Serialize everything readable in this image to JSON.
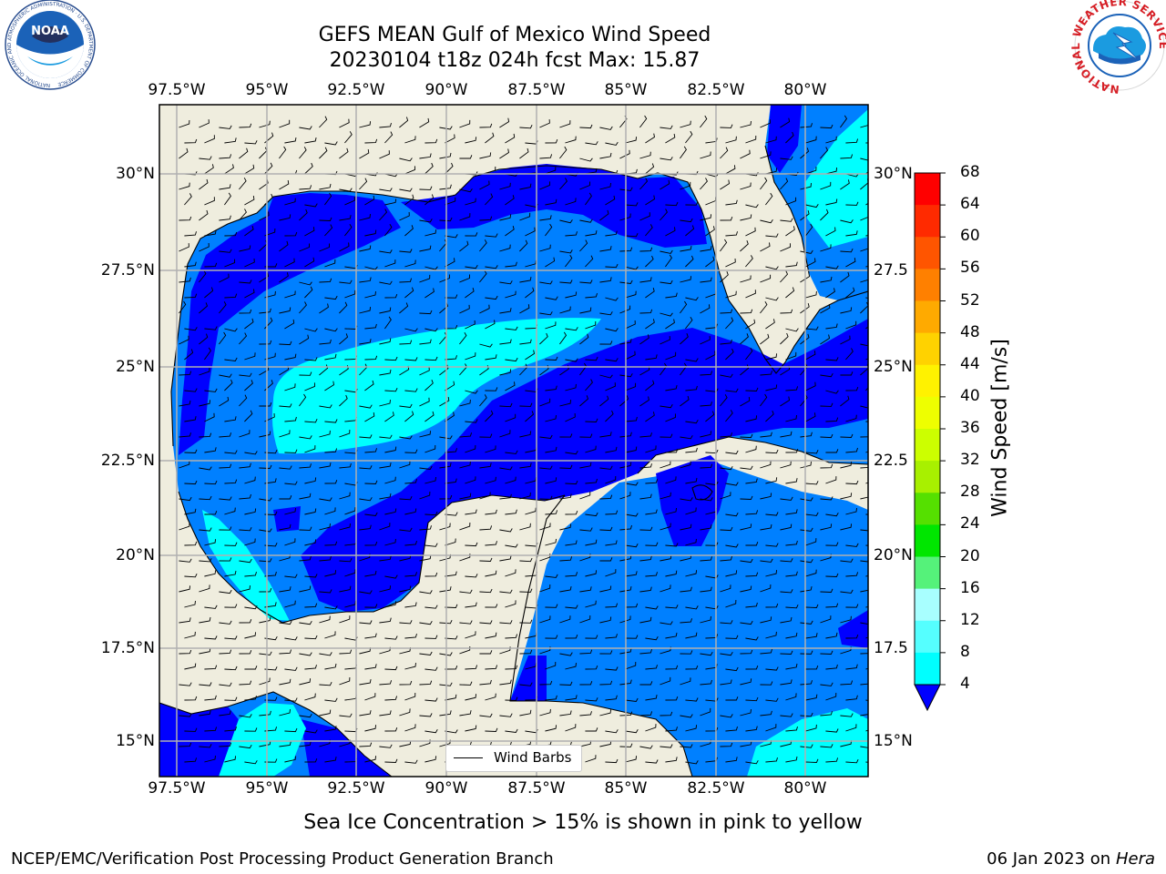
{
  "title": {
    "line1": "GEFS MEAN Gulf of Mexico Wind Speed",
    "line2": "20230104 t18z 024h fcst   Max: 15.87"
  },
  "map": {
    "lon_labels": [
      "97.5°W",
      "95°W",
      "92.5°W",
      "90°W",
      "87.5°W",
      "85°W",
      "82.5°W",
      "80°W"
    ],
    "lat_labels_left": [
      "30°N",
      "27.5°N",
      "25°N",
      "22.5°N",
      "20°N",
      "17.5°N",
      "15°N"
    ],
    "lat_labels_right": [
      "30°N",
      "27.5",
      "25°N",
      "22.5",
      "20°N",
      "17.5",
      "15°N"
    ],
    "land_color": "#efedde",
    "legend_label": "Wind Barbs"
  },
  "colorbar": {
    "title": "Wind Speed [m/s]",
    "ticks": [
      "68",
      "64",
      "60",
      "56",
      "52",
      "48",
      "44",
      "40",
      "36",
      "32",
      "28",
      "24",
      "20",
      "16",
      "12",
      "8",
      "4"
    ],
    "colors": [
      "#ff0000",
      "#ff2a00",
      "#ff5500",
      "#ff8000",
      "#ffaa00",
      "#ffd200",
      "#fff200",
      "#eeff00",
      "#ccff00",
      "#a8f000",
      "#55e000",
      "#00e600",
      "#55f27a",
      "#a8ffff",
      "#55ffff",
      "#00ffff",
      "#0080ff"
    ],
    "under_color": "#0000ff"
  },
  "logos": {
    "noaa_text": "NOAA",
    "noaa_ring_text": "NATIONAL OCEANIC AND ATMOSPHERIC ADMINISTRATION · U.S. DEPARTMENT OF COMMERCE",
    "nws_ring_text": "NATIONAL WEATHER SERVICE"
  },
  "note": "Sea Ice Concentration > 15% is shown in pink to yellow",
  "footer": {
    "left": "NCEP/EMC/Verification Post Processing Product Generation Branch",
    "right_prefix": "06 Jan 2023 on ",
    "right_host": "Hera"
  }
}
